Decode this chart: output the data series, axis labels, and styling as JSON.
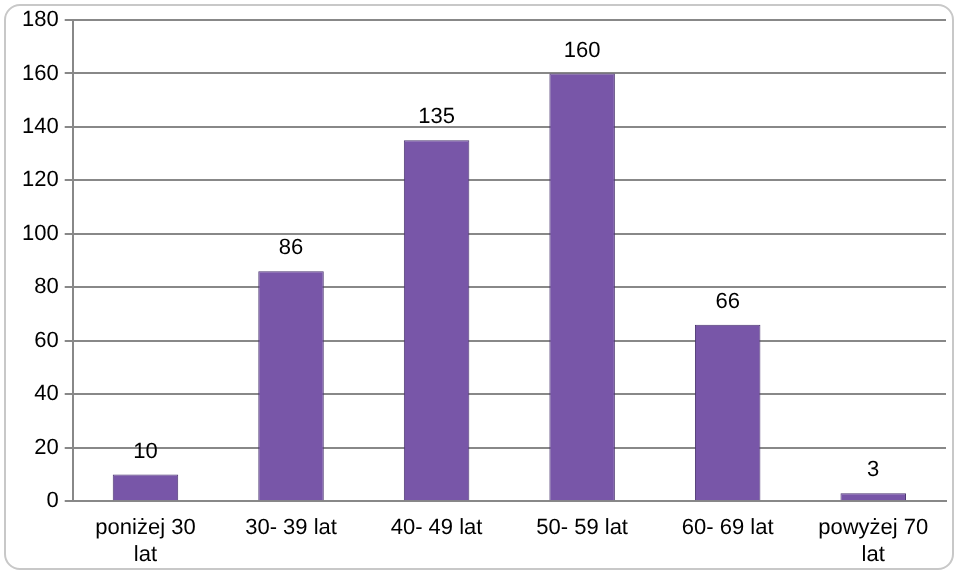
{
  "chart_data": {
    "type": "bar",
    "categories": [
      "poniżej 30 lat",
      "30- 39 lat",
      "40- 49 lat",
      "50- 59 lat",
      "60- 69 lat",
      "powyżej 70 lat"
    ],
    "values": [
      10,
      86,
      135,
      160,
      66,
      3
    ],
    "color": "#7856a8",
    "ylim": [
      0,
      180
    ],
    "yticks": [
      0,
      20,
      40,
      60,
      80,
      100,
      120,
      140,
      160,
      180
    ],
    "grid": "y",
    "legend": false,
    "data_labels": true
  }
}
